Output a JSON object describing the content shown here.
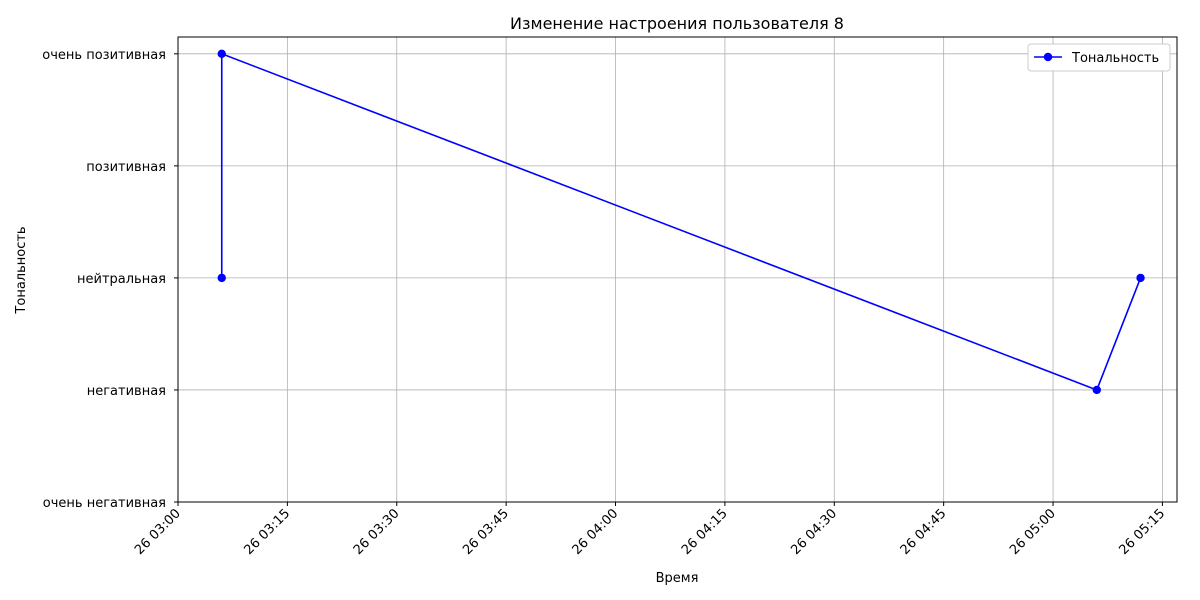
{
  "chart_data": {
    "type": "line",
    "title": "Изменение настроения пользователя 8",
    "xlabel": "Время",
    "ylabel": "Тональность",
    "x_ticks": [
      "26 03:00",
      "26 03:15",
      "26 03:30",
      "26 03:45",
      "26 04:00",
      "26 04:15",
      "26 04:30",
      "26 04:45",
      "26 05:00",
      "26 05:15"
    ],
    "y_categories": [
      "очень негативная",
      "негативная",
      "нейтральная",
      "позитивная",
      "очень позитивная"
    ],
    "xlim": [
      "26 03:00",
      "26 05:17"
    ],
    "ylim": [
      0,
      4.15
    ],
    "grid": true,
    "legend_position": "top-right",
    "series": [
      {
        "name": "Тональность",
        "color": "#0000ff",
        "marker": "circle",
        "points": [
          {
            "x": "26 03:06",
            "y": "нейтральная"
          },
          {
            "x": "26 03:06",
            "y": "очень позитивная"
          },
          {
            "x": "26 05:06",
            "y": "негативная"
          },
          {
            "x": "26 05:12",
            "y": "нейтральная"
          }
        ]
      }
    ]
  }
}
